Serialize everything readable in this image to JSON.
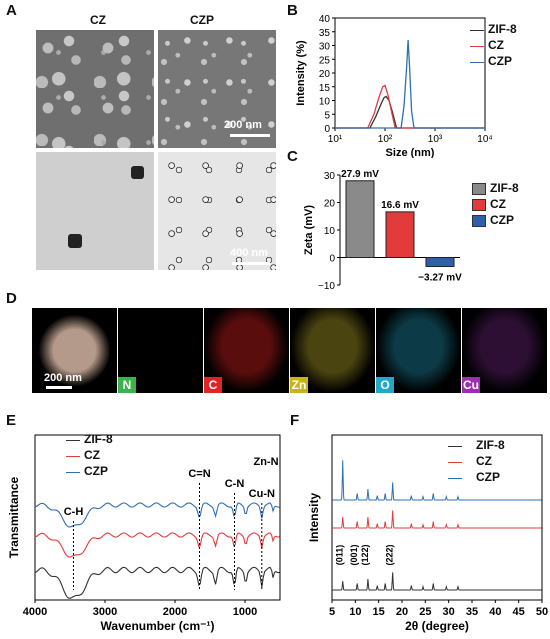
{
  "panels": {
    "A": "A",
    "B": "B",
    "C": "C",
    "D": "D",
    "E": "E",
    "F": "F"
  },
  "panelA": {
    "cz_label": "CZ",
    "czp_label": "CZP",
    "scale_top": "200 nm",
    "scale_bottom": "400 nm"
  },
  "panelD": {
    "scale": "200 nm",
    "elements": [
      {
        "label": "N",
        "color": "#3bb34a"
      },
      {
        "label": "C",
        "color": "#e02424"
      },
      {
        "label": "Zn",
        "color": "#c9b21a"
      },
      {
        "label": "O",
        "color": "#22a9c9"
      },
      {
        "label": "Cu",
        "color": "#9b2fae"
      }
    ]
  },
  "legend": {
    "zif8": "ZIF-8",
    "cz": "CZ",
    "czp": "CZP"
  },
  "colors": {
    "zif8": "#333333",
    "cz": "#e23b3b",
    "czp": "#2e6fb4",
    "zif8_bar": "#8a8a8a",
    "cz_bar": "#e23b3b",
    "czp_bar": "#2e5fa8"
  },
  "chart_data": [
    {
      "panel": "B",
      "type": "line",
      "xlabel": "Size (nm)",
      "ylabel": "Intensity (%)",
      "xscale": "log",
      "xlim": [
        10,
        10000
      ],
      "ylim": [
        0,
        40
      ],
      "xticks": [
        "10¹",
        "10²",
        "10³",
        "10⁴"
      ],
      "yticks": [
        "0",
        "5",
        "10",
        "15",
        "20",
        "25",
        "30",
        "35",
        "40"
      ],
      "series": [
        {
          "name": "ZIF-8",
          "x": [
            50,
            65,
            80,
            95,
            105,
            120,
            140,
            170
          ],
          "y": [
            0,
            4,
            8,
            11,
            11.5,
            10,
            6,
            0
          ]
        },
        {
          "name": "CZ",
          "x": [
            45,
            60,
            75,
            90,
            100,
            115,
            135,
            160
          ],
          "y": [
            0,
            5,
            11,
            15,
            15.5,
            12,
            6,
            0
          ]
        },
        {
          "name": "CZP",
          "x": [
            210,
            240,
            270,
            290,
            310,
            340,
            380
          ],
          "y": [
            0,
            8,
            22,
            32,
            22,
            6,
            0
          ]
        }
      ]
    },
    {
      "panel": "C",
      "type": "bar",
      "ylabel": "Zeta (mV)",
      "ylim": [
        -10,
        30
      ],
      "yticks": [
        "30",
        "20",
        "10",
        "0",
        "−10"
      ],
      "categories": [
        "ZIF-8",
        "CZ",
        "CZP"
      ],
      "values": [
        27.9,
        16.6,
        -3.27
      ],
      "data_labels": [
        "27.9 mV",
        "16.6 mV",
        "−3.27 mV"
      ]
    },
    {
      "panel": "E",
      "type": "line",
      "xlabel": "Wavenumber (cm⁻¹)",
      "ylabel": "Transmittance",
      "xlim": [
        4000,
        500
      ],
      "xticks": [
        "4000",
        "3000",
        "2000",
        "1000"
      ],
      "annotations": [
        "C-H",
        "C=N",
        "C-N",
        "Cu-N",
        "Zn-N"
      ],
      "series": [
        {
          "name": "ZIF-8"
        },
        {
          "name": "CZ"
        },
        {
          "name": "CZP"
        }
      ]
    },
    {
      "panel": "F",
      "type": "line",
      "xlabel": "2θ (degree)",
      "ylabel": "Intensity",
      "xlim": [
        5,
        50
      ],
      "xticks": [
        "5",
        "10",
        "15",
        "20",
        "25",
        "30",
        "35",
        "40",
        "45",
        "50"
      ],
      "peak_labels": [
        "(011)",
        "(001)",
        "(122)",
        "(222)"
      ],
      "series": [
        {
          "name": "ZIF-8"
        },
        {
          "name": "CZ"
        },
        {
          "name": "CZP"
        }
      ]
    }
  ]
}
